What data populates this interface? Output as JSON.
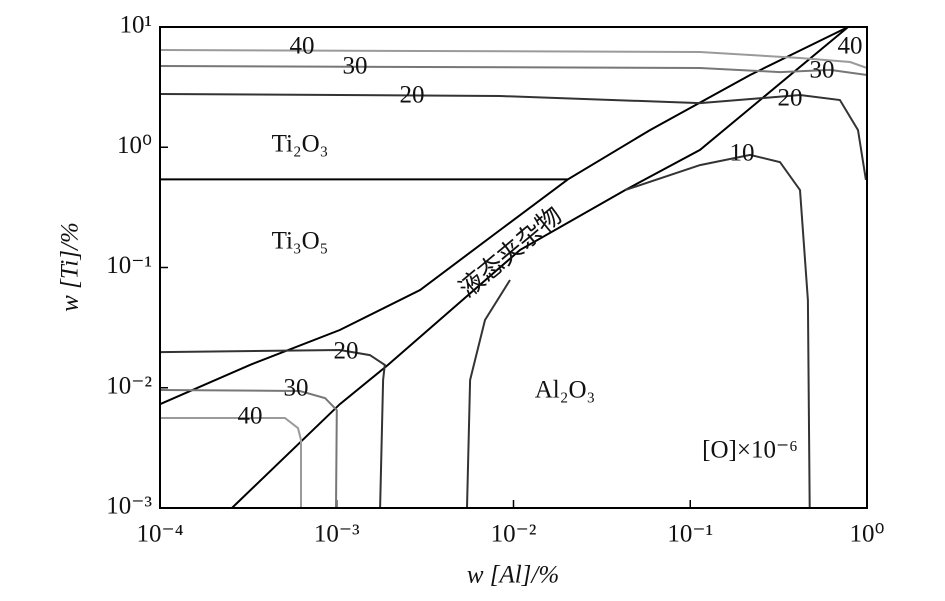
{
  "chart_data": {
    "type": "line",
    "xlabel": "w [Al]/%",
    "ylabel": "w [Ti]/%",
    "xscale": "log",
    "yscale": "log",
    "xlim": [
      0.0001,
      1
    ],
    "ylim": [
      0.001,
      10
    ],
    "xticks": [
      {
        "value": 0.0001,
        "label": "10⁻⁴"
      },
      {
        "value": 0.001,
        "label": "10⁻³"
      },
      {
        "value": 0.01,
        "label": "10⁻²"
      },
      {
        "value": 0.1,
        "label": "10⁻¹"
      },
      {
        "value": 1,
        "label": "10⁰"
      }
    ],
    "yticks": [
      {
        "value": 0.001,
        "label": "10⁻³"
      },
      {
        "value": 0.01,
        "label": "10⁻²"
      },
      {
        "value": 0.1,
        "label": "10⁻¹"
      },
      {
        "value": 1,
        "label": "10⁰"
      },
      {
        "value": 10,
        "label": "10¹"
      }
    ],
    "series": [
      {
        "color": "#000000",
        "x": [
          0.0001,
          0.0203
        ],
        "values": [
          0.54,
          0.54
        ]
      },
      {
        "color": "#000000",
        "x": [
          0.0001,
          0.000323,
          0.00104,
          0.00296,
          0.0084,
          0.0203,
          0.0592,
          0.218,
          0.782
        ],
        "values": [
          0.0073,
          0.0155,
          0.0302,
          0.065,
          0.205,
          0.54,
          1.39,
          3.99,
          10
        ]
      },
      {
        "color": "#000000",
        "x": [
          0.000255,
          0.00104,
          0.00195,
          0.0109,
          0.0428,
          0.1135,
          0.782
        ],
        "values": [
          0.001,
          0.0073,
          0.0155,
          0.14,
          0.44,
          0.95,
          10
        ]
      },
      {
        "color": "#333333",
        "x": [
          0.00546,
          0.00568,
          0.0069,
          0.00955,
          null,
          0.0428,
          0.1135,
          0.218,
          0.322,
          0.418,
          0.463,
          0.474
        ],
        "values": [
          0.001,
          0.0116,
          0.0366,
          0.0787,
          null,
          0.44,
          0.711,
          0.863,
          0.753,
          0.44,
          0.0537,
          0.001
        ]
      },
      {
        "color": "#333333",
        "x": [
          0.0001,
          0.0084,
          0.1135,
          0.418,
          0.703,
          0.889,
          0.986
        ],
        "values": [
          2.77,
          2.67,
          2.33,
          2.72,
          2.47,
          1.39,
          0.535
        ]
      },
      {
        "color": "#777777",
        "x": [
          0.0001,
          0.1135,
          0.322,
          0.618,
          1
        ],
        "values": [
          4.74,
          4.56,
          4.22,
          4.4,
          3.99
        ]
      },
      {
        "color": "#9a9a9a",
        "x": [
          0.0001,
          0.1135,
          0.418,
          0.802,
          1
        ],
        "values": [
          6.44,
          6.2,
          5.52,
          5.12,
          4.56
        ]
      },
      {
        "color": "#333333",
        "x": [
          0.0001,
          0.00104,
          0.00154,
          0.00187,
          0.00183,
          0.00176
        ],
        "values": [
          0.0198,
          0.0206,
          0.0187,
          0.0155,
          0.0116,
          0.001
        ]
      },
      {
        "color": "#777777",
        "x": [
          0.0001,
          0.000619,
          0.000859,
          0.001,
          0.00099
        ],
        "values": [
          0.00957,
          0.0094,
          0.0082,
          0.0065,
          0.001
        ]
      },
      {
        "color": "#9a9a9a",
        "x": [
          0.0001,
          0.000509,
          0.000604,
          0.000628,
          0.000628
        ],
        "values": [
          0.0056,
          0.0056,
          0.00462,
          0.00368,
          0.001
        ]
      }
    ],
    "annotations": [
      "40",
      "30",
      "20",
      "40",
      "30",
      "20",
      "10",
      "20",
      "30",
      "40",
      "Ti₂O₃",
      "Ti₃O₅",
      "Al₂O₃",
      "[O]×10⁻⁶",
      "液态夹杂物"
    ]
  }
}
